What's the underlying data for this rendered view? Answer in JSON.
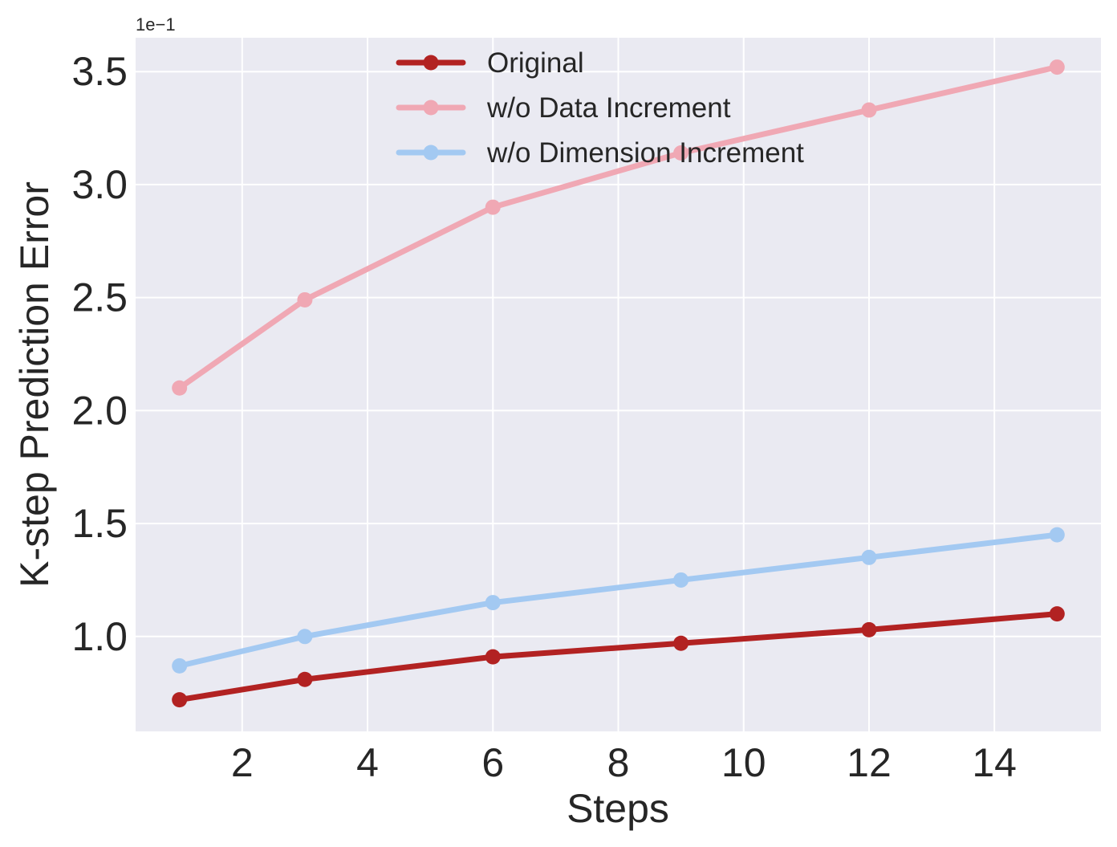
{
  "chart_data": {
    "type": "line",
    "xlabel": "Steps",
    "ylabel": "K-step Prediction Error",
    "offset_text": "1e−1",
    "xlim": [
      0.3,
      15.7
    ],
    "ylim": [
      0.58,
      3.65
    ],
    "x_ticks": [
      2,
      4,
      6,
      8,
      10,
      12,
      14
    ],
    "y_ticks": [
      1.0,
      1.5,
      2.0,
      2.5,
      3.0,
      3.5
    ],
    "x_tick_labels": [
      "2",
      "4",
      "6",
      "8",
      "10",
      "12",
      "14"
    ],
    "y_tick_labels": [
      "1.0",
      "1.5",
      "2.0",
      "2.5",
      "3.0",
      "3.5"
    ],
    "x": [
      1,
      3,
      6,
      9,
      12,
      15
    ],
    "series": [
      {
        "name": "Original",
        "color": "#b22222",
        "values": [
          0.72,
          0.81,
          0.91,
          0.97,
          1.03,
          1.1
        ]
      },
      {
        "name": "w/o Data Increment",
        "color": "#f0a8b4",
        "values": [
          2.1,
          2.49,
          2.9,
          3.14,
          3.33,
          3.52
        ]
      },
      {
        "name": "w/o Dimension Increment",
        "color": "#a3c9f2",
        "values": [
          0.87,
          1.0,
          1.15,
          1.25,
          1.35,
          1.45
        ]
      }
    ],
    "grid": true,
    "legend_position": "top-center",
    "background": "#eaeaf2",
    "grid_color": "#ffffff"
  }
}
